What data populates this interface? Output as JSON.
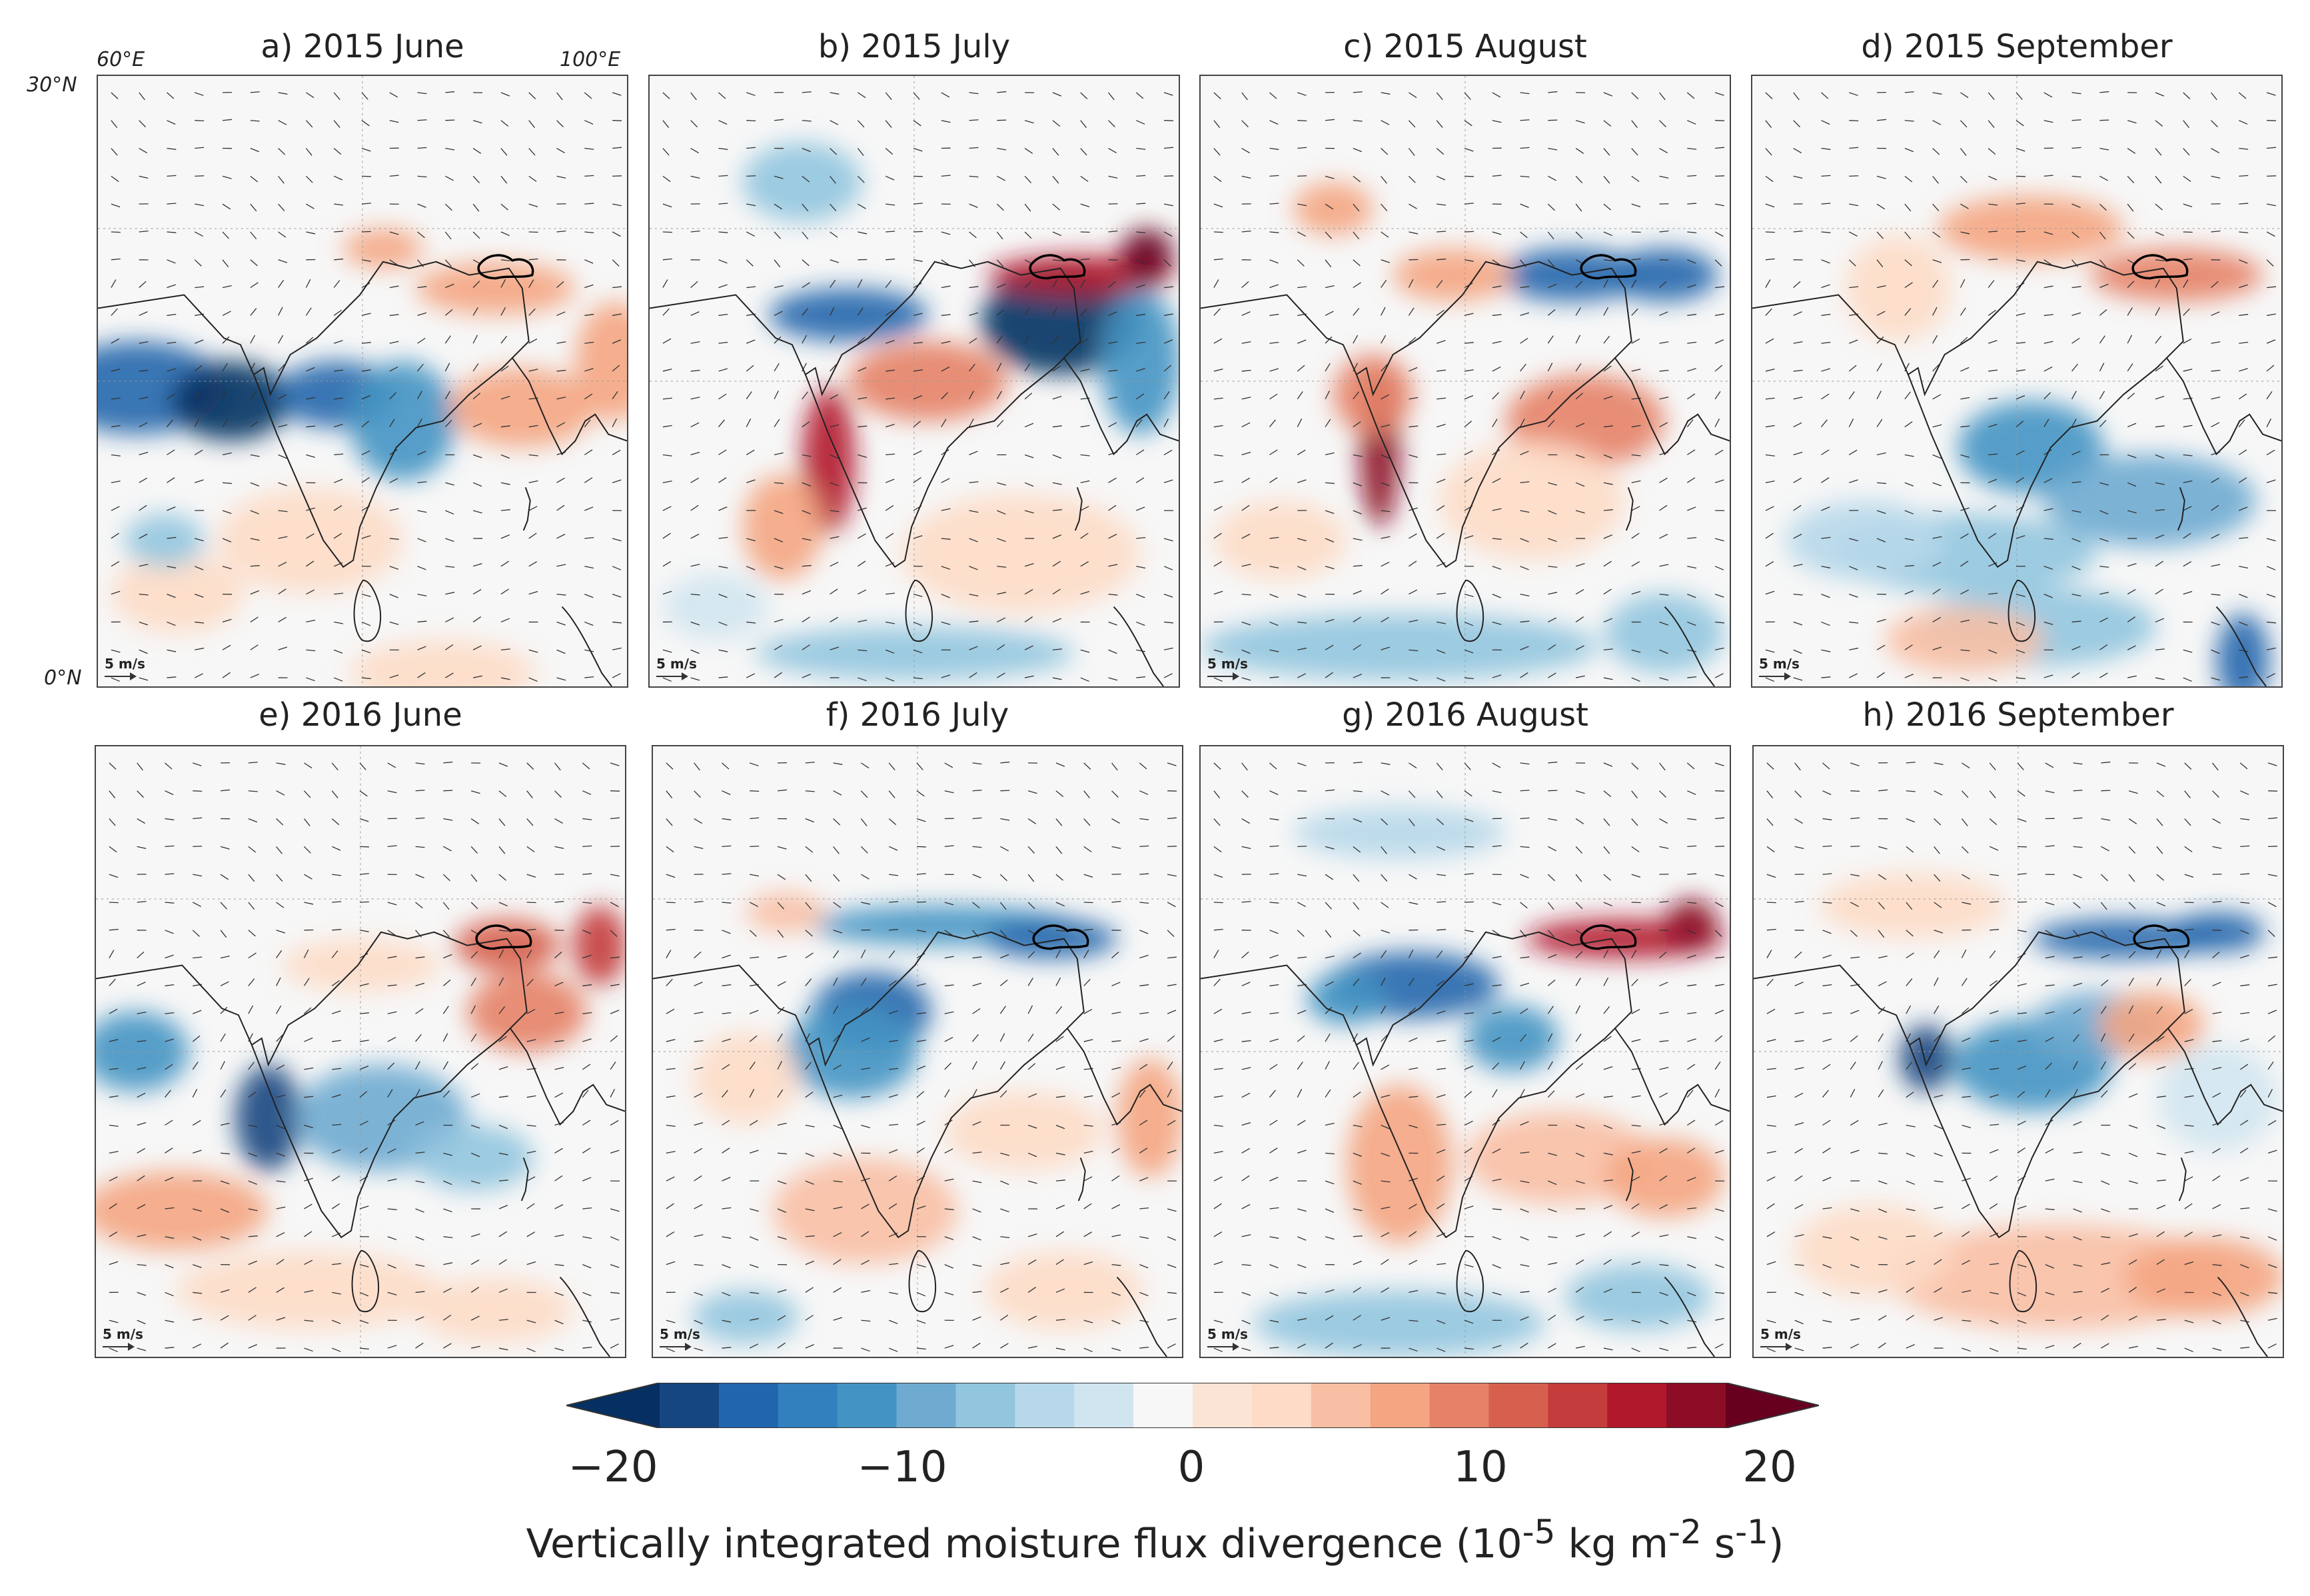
{
  "axes": {
    "lon_left": "60°E",
    "lon_right": "100°E",
    "lat_top": "30°N",
    "lat_bottom": "0°N"
  },
  "scale_label": "5 m/s",
  "panels": [
    {
      "title": "a) 2015 June",
      "pattern": "june2015"
    },
    {
      "title": "b) 2015 July",
      "pattern": "july2015"
    },
    {
      "title": "c) 2015 August",
      "pattern": "aug2015"
    },
    {
      "title": "d) 2015 September",
      "pattern": "sep2015"
    },
    {
      "title": "e) 2016 June",
      "pattern": "june2016"
    },
    {
      "title": "f) 2016 July",
      "pattern": "july2016"
    },
    {
      "title": "g) 2016 August",
      "pattern": "aug2016"
    },
    {
      "title": "h) 2016 September",
      "pattern": "sep2016"
    }
  ],
  "colorbar": {
    "min": -20,
    "max": 20,
    "ticks": [
      "−20",
      "−10",
      "0",
      "10",
      "20"
    ],
    "tick_values": [
      -20,
      -10,
      0,
      10,
      20
    ],
    "colors": [
      "#053061",
      "#15467f",
      "#2166ac",
      "#3280bd",
      "#4393c3",
      "#6fabd0",
      "#92c5de",
      "#b7d8ea",
      "#d1e5f0",
      "#f7f7f7",
      "#fbe3d6",
      "#fddbc7",
      "#f8bfa4",
      "#f4a582",
      "#e58267",
      "#d6604d",
      "#c43c3c",
      "#b2182b",
      "#8c0d25",
      "#67001f"
    ],
    "label_main": "Vertically integrated moisture flux divergence (10",
    "label_exp1": "-5",
    "label_mid1": " kg m",
    "label_exp2": "-2",
    "label_mid2": " s",
    "label_exp3": "-1",
    "label_end": ")"
  }
}
